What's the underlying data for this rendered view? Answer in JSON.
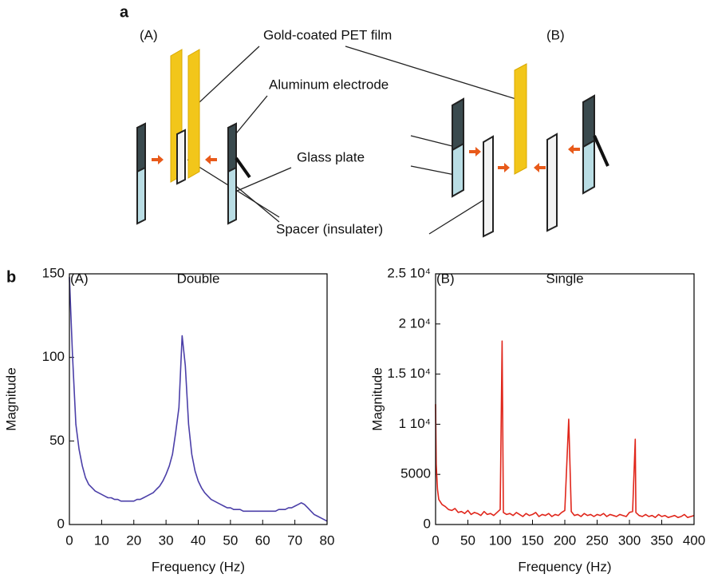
{
  "diagram": {
    "label": "a",
    "left_label": "(A)",
    "right_label": "(B)",
    "parts": [
      "Gold-coated PET film",
      "Aluminum electrode",
      "Glass plate",
      "Spacer (insulater)"
    ]
  },
  "figure_b_label": "b",
  "chart_data": [
    {
      "type": "line",
      "panel_label": "(A)",
      "title": "Double",
      "xlabel": "Frequency (Hz)",
      "ylabel": "Magnitude",
      "color": "#4b3fa8",
      "xlim": [
        0,
        80
      ],
      "ylim": [
        0,
        150
      ],
      "xticks": [
        0,
        10,
        20,
        30,
        40,
        50,
        60,
        70,
        80
      ],
      "yticks": [
        0,
        50,
        100,
        150
      ],
      "x": [
        0,
        1,
        2,
        3,
        4,
        5,
        6,
        7,
        8,
        9,
        10,
        11,
        12,
        13,
        14,
        15,
        16,
        17,
        18,
        19,
        20,
        21,
        22,
        23,
        24,
        25,
        26,
        27,
        28,
        29,
        30,
        31,
        32,
        33,
        34,
        35,
        36,
        37,
        38,
        39,
        40,
        41,
        42,
        43,
        44,
        45,
        46,
        47,
        48,
        49,
        50,
        51,
        52,
        53,
        54,
        55,
        56,
        57,
        58,
        59,
        60,
        61,
        62,
        63,
        64,
        65,
        66,
        67,
        68,
        69,
        70,
        71,
        72,
        73,
        74,
        75,
        76,
        77,
        78,
        79,
        80
      ],
      "values": [
        148,
        100,
        60,
        45,
        35,
        28,
        24,
        22,
        20,
        19,
        18,
        17,
        16,
        16,
        15,
        15,
        14,
        14,
        14,
        14,
        14,
        15,
        15,
        16,
        17,
        18,
        19,
        21,
        23,
        26,
        30,
        35,
        42,
        55,
        70,
        113,
        95,
        60,
        42,
        32,
        26,
        22,
        19,
        17,
        15,
        14,
        13,
        12,
        11,
        10,
        10,
        9,
        9,
        9,
        8,
        8,
        8,
        8,
        8,
        8,
        8,
        8,
        8,
        8,
        8,
        9,
        9,
        9,
        10,
        10,
        11,
        12,
        13,
        12,
        10,
        8,
        6,
        5,
        4,
        3,
        2
      ]
    },
    {
      "type": "line",
      "panel_label": "(B)",
      "title": "Single",
      "xlabel": "Frequency (Hz)",
      "ylabel": "Magnitude",
      "color": "#e0261b",
      "xlim": [
        0,
        400
      ],
      "ylim": [
        0,
        25000
      ],
      "xticks": [
        0,
        50,
        100,
        150,
        200,
        250,
        300,
        350,
        400
      ],
      "yticks": [
        0,
        5000,
        {
          "value": 10000,
          "label": "1 10⁴"
        },
        {
          "value": 15000,
          "label": "1.5 10⁴"
        },
        {
          "value": 20000,
          "label": "2 10⁴"
        },
        {
          "value": 25000,
          "label": "2.5 10⁴"
        }
      ],
      "x": [
        0,
        1,
        3,
        5,
        10,
        15,
        20,
        25,
        30,
        35,
        40,
        45,
        50,
        55,
        60,
        65,
        70,
        75,
        80,
        85,
        90,
        95,
        100,
        103,
        105,
        110,
        115,
        120,
        125,
        130,
        135,
        140,
        145,
        150,
        155,
        160,
        165,
        170,
        175,
        180,
        185,
        190,
        195,
        200,
        206,
        210,
        215,
        220,
        225,
        230,
        235,
        240,
        245,
        250,
        255,
        260,
        265,
        270,
        275,
        280,
        285,
        290,
        295,
        300,
        305,
        309,
        310,
        315,
        320,
        325,
        330,
        335,
        340,
        345,
        350,
        355,
        360,
        365,
        370,
        375,
        380,
        385,
        390,
        395,
        400
      ],
      "values": [
        12000,
        6000,
        3500,
        2500,
        2000,
        1800,
        1500,
        1400,
        1600,
        1200,
        1300,
        1100,
        1400,
        1000,
        1200,
        1100,
        900,
        1300,
        1000,
        1100,
        900,
        1200,
        1500,
        18300,
        1200,
        1000,
        1100,
        900,
        1200,
        1000,
        800,
        1100,
        900,
        1000,
        1200,
        800,
        1000,
        900,
        1100,
        800,
        1000,
        900,
        1200,
        1400,
        10500,
        1300,
        900,
        1000,
        800,
        1100,
        900,
        1000,
        800,
        1000,
        900,
        1100,
        800,
        1000,
        900,
        800,
        1000,
        900,
        800,
        1200,
        1300,
        8500,
        1200,
        900,
        800,
        1000,
        800,
        900,
        700,
        1000,
        800,
        900,
        700,
        800,
        900,
        700,
        800,
        1000,
        700,
        800,
        900
      ]
    }
  ]
}
